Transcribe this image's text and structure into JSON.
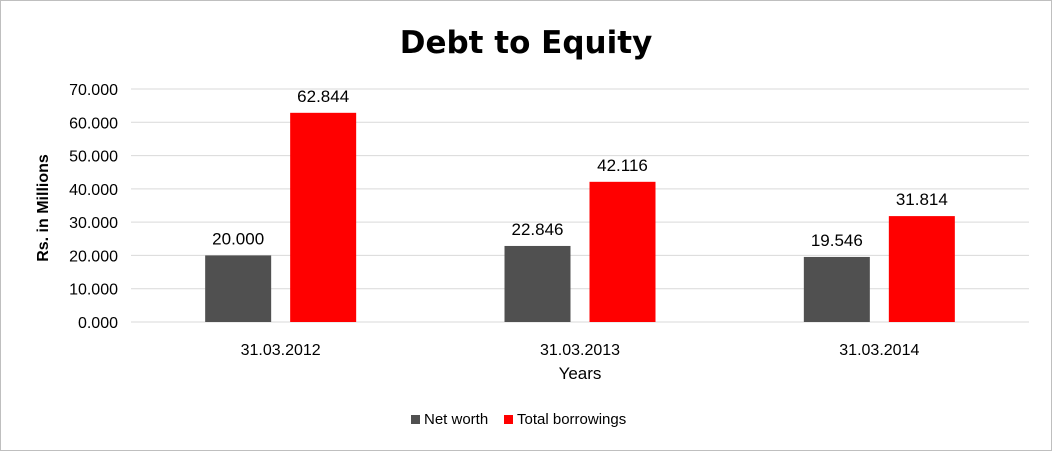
{
  "chart_data": {
    "type": "bar",
    "title": "Debt to Equity",
    "xlabel": "Years",
    "ylabel": "Rs. in Millions",
    "categories": [
      "31.03.2012",
      "31.03.2013",
      "31.03.2014"
    ],
    "series": [
      {
        "name": "Net worth",
        "values": [
          20.0,
          22.846,
          19.546
        ],
        "labels": [
          "20.000",
          "22.846",
          "19.546"
        ],
        "color": "#505050"
      },
      {
        "name": "Total borrowings",
        "values": [
          62.844,
          42.116,
          31.814
        ],
        "labels": [
          "62.844",
          "42.116",
          "31.814"
        ],
        "color": "#ff0000"
      }
    ],
    "ylim": [
      0,
      70
    ],
    "yticks": [
      "0.000",
      "10.000",
      "20.000",
      "30.000",
      "40.000",
      "50.000",
      "60.000",
      "70.000"
    ],
    "grid": true,
    "legend_position": "bottom",
    "gridline_color": "#d9d9d9"
  }
}
